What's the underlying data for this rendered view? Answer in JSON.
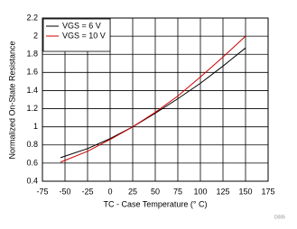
{
  "chart_data": {
    "type": "line",
    "xlabel": "TC - Case Temperature (° C)",
    "ylabel": "Normalized On-State Resistance",
    "figure_id": "D005",
    "x": [
      -55,
      -25,
      0,
      25,
      50,
      75,
      100,
      125,
      150
    ],
    "series": [
      {
        "name": "VGS = 6 V",
        "color": "#000000",
        "values": [
          0.66,
          0.76,
          0.87,
          1.0,
          1.15,
          1.31,
          1.48,
          1.67,
          1.87
        ]
      },
      {
        "name": "VGS = 10 V",
        "color": "#cc0000",
        "values": [
          0.61,
          0.73,
          0.86,
          1.0,
          1.16,
          1.34,
          1.55,
          1.77,
          2.0
        ]
      }
    ],
    "xlim": [
      -75,
      175
    ],
    "xticks": [
      -75,
      -50,
      -25,
      0,
      25,
      50,
      75,
      100,
      125,
      150,
      175
    ],
    "ylim": [
      0.4,
      2.2
    ],
    "yticks": [
      0.4,
      0.6,
      0.8,
      1,
      1.2,
      1.4,
      1.6,
      1.8,
      2,
      2.2
    ],
    "grid": true,
    "legend": "upper left"
  }
}
